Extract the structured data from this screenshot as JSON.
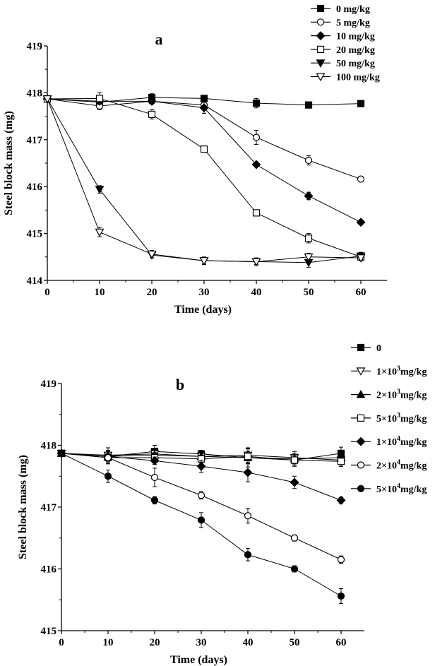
{
  "chart_data": [
    {
      "type": "line",
      "panel_label": "a",
      "xlabel": "Time  (days)",
      "ylabel": "Steel block mass  (mg)",
      "xlim": [
        0,
        65
      ],
      "ylim": [
        414,
        419
      ],
      "x_ticks": [
        "0",
        "10",
        "20",
        "30",
        "40",
        "50",
        "60"
      ],
      "y_ticks": [
        "414",
        "415",
        "416",
        "417",
        "418",
        "419"
      ],
      "x_tick_values": [
        0,
        10,
        20,
        30,
        40,
        50,
        60
      ],
      "y_tick_values": [
        414,
        415,
        416,
        417,
        418,
        419
      ],
      "legend_position": "top-right outside",
      "grid": false,
      "x": [
        0,
        10,
        20,
        30,
        40,
        50,
        60
      ],
      "series": [
        {
          "name": "0 mg/kg",
          "marker": "square-filled",
          "values": [
            417.87,
            417.8,
            417.9,
            417.88,
            417.78,
            417.74,
            417.77
          ],
          "errors": [
            0,
            0.05,
            0.08,
            0.04,
            0.1,
            0.04,
            0.04
          ]
        },
        {
          "name": "5 mg/kg",
          "marker": "circle-open",
          "values": [
            417.87,
            417.72,
            417.82,
            417.74,
            417.05,
            416.56,
            416.16
          ],
          "errors": [
            0,
            0.08,
            0.06,
            0.06,
            0.15,
            0.1,
            0.06
          ]
        },
        {
          "name": "10 mg/kg",
          "marker": "diamond-filled",
          "values": [
            417.87,
            417.82,
            417.82,
            417.68,
            416.47,
            415.8,
            415.24
          ],
          "errors": [
            0,
            0.06,
            0.05,
            0.12,
            0.05,
            0.08,
            0.05
          ]
        },
        {
          "name": "20 mg/kg",
          "marker": "square-open",
          "values": [
            417.87,
            417.88,
            417.54,
            416.8,
            415.44,
            414.9,
            414.5
          ],
          "errors": [
            0,
            0.12,
            0.1,
            0.04,
            0.04,
            0.1,
            0.06
          ]
        },
        {
          "name": "50 mg/kg",
          "marker": "triangle-down-filled",
          "values": [
            417.87,
            415.94,
            414.54,
            414.42,
            414.4,
            414.38,
            414.52
          ],
          "errors": [
            0,
            0.08,
            0.06,
            0.06,
            0.06,
            0.1,
            0.08
          ]
        },
        {
          "name": "100 mg/kg",
          "marker": "triangle-down-open",
          "values": [
            417.87,
            415.03,
            414.56,
            414.42,
            414.4,
            414.5,
            414.48
          ],
          "errors": [
            0,
            0.1,
            0.08,
            0.08,
            0.08,
            0.08,
            0.06
          ]
        }
      ]
    },
    {
      "type": "line",
      "panel_label": "b",
      "xlabel": "Time (days)",
      "ylabel": "Steel block mass (mg)",
      "xlim": [
        0,
        65
      ],
      "ylim": [
        415,
        419
      ],
      "x_ticks": [
        "0",
        "10",
        "20",
        "30",
        "40",
        "50",
        "60"
      ],
      "y_ticks": [
        "415",
        "416",
        "417",
        "418",
        "419"
      ],
      "x_tick_values": [
        0,
        10,
        20,
        30,
        40,
        50,
        60
      ],
      "y_tick_values": [
        415,
        416,
        417,
        418,
        419
      ],
      "legend_position": "top-right outside",
      "grid": false,
      "x": [
        0,
        10,
        20,
        30,
        40,
        50,
        60
      ],
      "series": [
        {
          "name_base": "0",
          "name_exp": "",
          "name_unit": "",
          "marker": "square-filled",
          "values": [
            417.87,
            417.82,
            417.9,
            417.86,
            417.8,
            417.76,
            417.87
          ],
          "errors": [
            0,
            0.1,
            0.1,
            0.06,
            0.15,
            0.1,
            0.1
          ]
        },
        {
          "name_base": "1×10",
          "name_exp": "3",
          "name_unit": "mg/kg",
          "marker": "triangle-down-open",
          "values": [
            417.87,
            417.84,
            417.86,
            417.82,
            417.84,
            417.8,
            417.76
          ],
          "errors": [
            0,
            0.12,
            0.08,
            0.06,
            0.12,
            0.1,
            0.1
          ]
        },
        {
          "name_base": "2×10",
          "name_exp": "3",
          "name_unit": "mg/kg",
          "marker": "triangle-up-filled",
          "values": [
            417.87,
            417.82,
            417.84,
            417.82,
            417.8,
            417.78,
            417.8
          ],
          "errors": [
            0,
            0.1,
            0.08,
            0.06,
            0.1,
            0.08,
            0.08
          ]
        },
        {
          "name_base": "5×10",
          "name_exp": "3",
          "name_unit": "mg/kg",
          "marker": "square-open",
          "values": [
            417.87,
            417.8,
            417.8,
            417.78,
            417.82,
            417.76,
            417.74
          ],
          "errors": [
            0,
            0.1,
            0.08,
            0.06,
            0.12,
            0.08,
            0.08
          ]
        },
        {
          "name_base": "1×10",
          "name_exp": "4",
          "name_unit": "mg/kg",
          "marker": "diamond-filled",
          "values": [
            417.87,
            417.82,
            417.75,
            417.66,
            417.56,
            417.4,
            417.11
          ],
          "errors": [
            0,
            0.08,
            0.06,
            0.1,
            0.15,
            0.1,
            0.05
          ]
        },
        {
          "name_base": "2×10",
          "name_exp": "4",
          "name_unit": "mg/kg",
          "marker": "circle-open",
          "values": [
            417.87,
            417.8,
            417.48,
            417.19,
            416.86,
            416.5,
            416.15
          ],
          "errors": [
            0,
            0.1,
            0.15,
            0.06,
            0.12,
            0.05,
            0.06
          ]
        },
        {
          "name_base": "5×10",
          "name_exp": "4",
          "name_unit": "mg/kg",
          "marker": "circle-filled",
          "values": [
            417.87,
            417.5,
            417.11,
            416.79,
            416.23,
            416.0,
            415.56
          ],
          "errors": [
            0,
            0.1,
            0.06,
            0.12,
            0.1,
            0.05,
            0.12
          ]
        }
      ]
    }
  ]
}
